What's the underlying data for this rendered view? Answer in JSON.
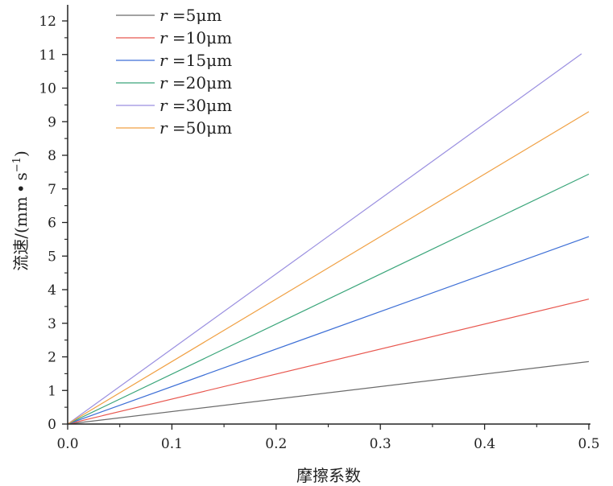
{
  "chart_data": {
    "type": "line",
    "title": "",
    "xlabel": "摩擦系数",
    "ylabel": "流速/(mm·s⁻¹)",
    "ylabel_parts": {
      "main": "流速/(mm",
      "dot": "•",
      "unit": "s",
      "sup": "−1",
      "close": ")"
    },
    "xlim": [
      0,
      0.5
    ],
    "ylim": [
      0,
      12.5
    ],
    "x_ticks": [
      0.0,
      0.1,
      0.2,
      0.3,
      0.4,
      0.5
    ],
    "x_tick_labels": [
      "0.0",
      "0.1",
      "0.2",
      "0.3",
      "0.4",
      "0.5"
    ],
    "y_ticks": [
      0,
      1,
      2,
      3,
      4,
      5,
      6,
      7,
      8,
      9,
      10,
      11,
      12
    ],
    "y_tick_labels": [
      "0",
      "1",
      "2",
      "3",
      "4",
      "5",
      "6",
      "7",
      "8",
      "9",
      "10",
      "11",
      "12"
    ],
    "grid": false,
    "legend": "top-left",
    "series": [
      {
        "name": "r =5μm",
        "legend_var": "r",
        "legend_rest": " =5μm",
        "color": "#6b6b6b",
        "x": [
          0,
          0.5
        ],
        "y": [
          0,
          1.86
        ]
      },
      {
        "name": "r =10μm",
        "legend_var": "r",
        "legend_rest": " =10μm",
        "color": "#e8574f",
        "x": [
          0,
          0.5
        ],
        "y": [
          0,
          3.72
        ]
      },
      {
        "name": "r =15μm",
        "legend_var": "r",
        "legend_rest": " =15μm",
        "color": "#3d6fd6",
        "x": [
          0,
          0.5
        ],
        "y": [
          0,
          5.58
        ]
      },
      {
        "name": "r =20μm",
        "legend_var": "r",
        "legend_rest": " =20μm",
        "color": "#3aa57a",
        "x": [
          0,
          0.5
        ],
        "y": [
          0,
          7.44
        ]
      },
      {
        "name": "r =30μm",
        "legend_var": "r",
        "legend_rest": " =30μm",
        "color": "#9a8fe0",
        "x": [
          0,
          0.493
        ],
        "y": [
          0,
          11.02
        ]
      },
      {
        "name": "r =50μm",
        "legend_var": "r",
        "legend_rest": " =50μm",
        "color": "#f0a043",
        "x": [
          0,
          0.5
        ],
        "y": [
          0,
          9.3
        ]
      }
    ]
  }
}
